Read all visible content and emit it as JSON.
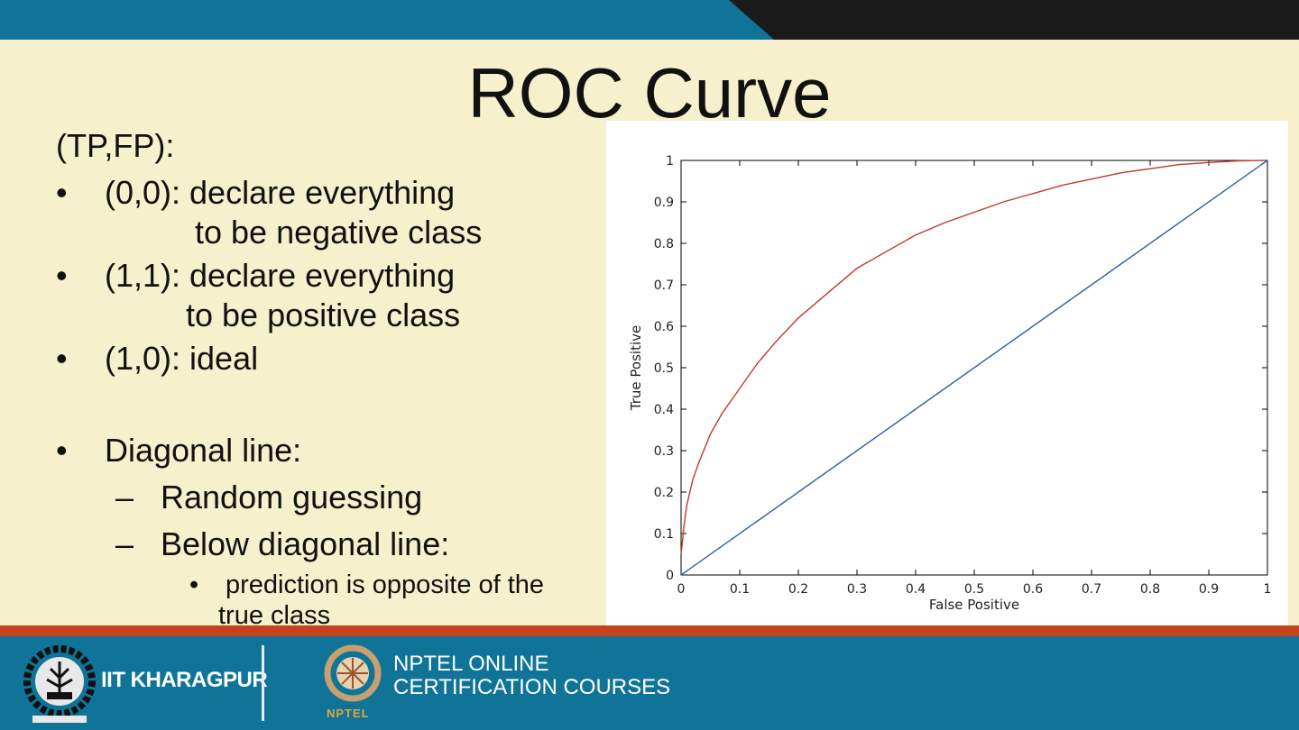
{
  "slide": {
    "title": "ROC Curve",
    "heading": "(TP,FP):",
    "bullets": [
      {
        "line1": "(0,0): declare everything",
        "line2": "to be negative class"
      },
      {
        "line1": "(1,1): declare everything",
        "line2": "to be positive class"
      },
      {
        "line1": "(1,0): ideal"
      }
    ],
    "diagonal": {
      "label": "Diagonal line:",
      "sub": [
        "Random guessing",
        "Below diagonal line:"
      ],
      "subsub_line1": "prediction is opposite of the",
      "subsub_line2": "true class"
    },
    "bullet_mark": "•",
    "dash_mark": "–"
  },
  "footer": {
    "iit_label": "IIT KHARAGPUR",
    "nptel_line1": "NPTEL ONLINE",
    "nptel_line2": "CERTIFICATION COURSES",
    "nptel_badge": "NPTEL"
  },
  "colors": {
    "background": "#f6f0cc",
    "band": "#0f7497",
    "stripe": "#c5431a",
    "roc_curve": "#c0392b",
    "diagonal": "#2c5ca8"
  },
  "chart_data": {
    "type": "line",
    "xlabel": "False Positive",
    "ylabel": "True Positive",
    "xlim": [
      0,
      1
    ],
    "ylim": [
      0,
      1
    ],
    "xticks": [
      0,
      0.1,
      0.2,
      0.3,
      0.4,
      0.5,
      0.6,
      0.7,
      0.8,
      0.9,
      1
    ],
    "yticks": [
      0,
      0.1,
      0.2,
      0.3,
      0.4,
      0.5,
      0.6,
      0.7,
      0.8,
      0.9,
      1
    ],
    "xtick_labels": [
      "0",
      "0.1",
      "0.2",
      "0.3",
      "0.4",
      "0.5",
      "0.6",
      "0.7",
      "0.8",
      "0.9",
      "1"
    ],
    "ytick_labels": [
      "0",
      "0.1",
      "0.2",
      "0.3",
      "0.4",
      "0.5",
      "0.6",
      "0.7",
      "0.8",
      "0.9",
      "1"
    ],
    "grid": false,
    "series": [
      {
        "color": "#c0392b",
        "x": [
          0,
          0.005,
          0.01,
          0.02,
          0.03,
          0.05,
          0.07,
          0.1,
          0.13,
          0.16,
          0.2,
          0.25,
          0.3,
          0.35,
          0.4,
          0.45,
          0.5,
          0.55,
          0.6,
          0.65,
          0.7,
          0.75,
          0.8,
          0.85,
          0.9,
          0.95,
          1
        ],
        "y": [
          0.05,
          0.12,
          0.17,
          0.23,
          0.27,
          0.34,
          0.39,
          0.45,
          0.51,
          0.56,
          0.62,
          0.68,
          0.74,
          0.78,
          0.82,
          0.85,
          0.875,
          0.9,
          0.92,
          0.94,
          0.955,
          0.97,
          0.98,
          0.99,
          0.995,
          0.999,
          1
        ]
      },
      {
        "color": "#2c5ca8",
        "x": [
          0,
          1
        ],
        "y": [
          0,
          1
        ]
      }
    ]
  }
}
